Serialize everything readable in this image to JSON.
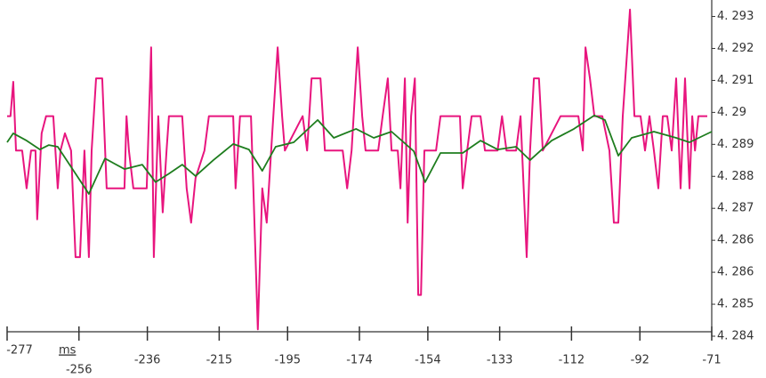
{
  "chart_data": {
    "type": "line",
    "x_label": "ms",
    "xlim": [
      -277,
      -71
    ],
    "xticks": [
      -277,
      -256,
      -236,
      -215,
      -195,
      -174,
      -154,
      -133,
      -112,
      -92,
      -71
    ],
    "ylim": [
      4.2837,
      4.29335
    ],
    "yticks": [
      {
        "value": 4.293,
        "label": "4. 293"
      },
      {
        "value": 4.29207,
        "label": "4. 292"
      },
      {
        "value": 4.29114,
        "label": "4. 291"
      },
      {
        "value": 4.29021,
        "label": "4. 29"
      },
      {
        "value": 4.28928,
        "label": "4. 289"
      },
      {
        "value": 4.28835,
        "label": "4. 288"
      },
      {
        "value": 4.28742,
        "label": "4. 287"
      },
      {
        "value": 4.28649,
        "label": "4. 286"
      },
      {
        "value": 4.28556,
        "label": "4. 286"
      },
      {
        "value": 4.28463,
        "label": "4. 285"
      },
      {
        "value": 4.2837,
        "label": "4. 284"
      }
    ],
    "series": [
      {
        "color": "#e8157e",
        "x": [
          -277.0,
          -276.0,
          -275.2,
          -274.4,
          -272.6,
          -271.3,
          -270.0,
          -268.7,
          -268.2,
          -266.9,
          -265.6,
          -263.5,
          -262.2,
          -261.4,
          -260.1,
          -258.3,
          -257.0,
          -255.7,
          -254.4,
          -253.1,
          -252.3,
          -251.0,
          -249.2,
          -247.9,
          -242.7,
          -242.1,
          -241.4,
          -240.1,
          -236.2,
          -234.9,
          -234.1,
          -232.8,
          -231.5,
          -230.4,
          -229.7,
          -225.8,
          -224.5,
          -223.2,
          -221.9,
          -219.3,
          -218.0,
          -210.9,
          -210.2,
          -208.9,
          -205.7,
          -205.0,
          -203.7,
          -202.4,
          -201.1,
          -199.8,
          -197.9,
          -196.6,
          -195.8,
          -190.6,
          -189.3,
          -188.0,
          -185.4,
          -184.1,
          -178.9,
          -177.6,
          -176.3,
          -174.5,
          -173.2,
          -172.2,
          -168.5,
          -167.2,
          -165.7,
          -164.6,
          -162.8,
          -162.0,
          -160.7,
          -159.9,
          -158.9,
          -157.8,
          -156.8,
          -156.0,
          -155.0,
          -151.6,
          -150.3,
          -144.6,
          -143.8,
          -142.5,
          -141.2,
          -138.6,
          -137.3,
          -133.6,
          -132.3,
          -131.0,
          -129.7,
          -128.2,
          -126.9,
          -125.1,
          -124.1,
          -123.0,
          -121.5,
          -120.4,
          -115.2,
          -111.3,
          -110.0,
          -108.7,
          -107.9,
          -106.6,
          -105.3,
          -103.0,
          -100.9,
          -99.6,
          -98.3,
          -97.0,
          -94.9,
          -93.6,
          -91.8,
          -90.5,
          -89.2,
          -87.9,
          -86.6,
          -85.3,
          -84.0,
          -82.7,
          -81.4,
          -80.1,
          -78.8,
          -77.5,
          -76.7,
          -75.9,
          -74.9,
          -72.3
        ],
        "values": [
          4.2901,
          4.2901,
          4.2911,
          4.2891,
          4.2891,
          4.288,
          4.2891,
          4.2891,
          4.2871,
          4.2896,
          4.2901,
          4.2901,
          4.288,
          4.2891,
          4.2896,
          4.2891,
          4.286,
          4.286,
          4.2891,
          4.286,
          4.2891,
          4.2912,
          4.2912,
          4.288,
          4.288,
          4.2901,
          4.2891,
          4.288,
          4.288,
          4.2921,
          4.286,
          4.2901,
          4.2873,
          4.2891,
          4.2901,
          4.2901,
          4.288,
          4.287,
          4.2883,
          4.2891,
          4.2901,
          4.2901,
          4.288,
          4.2901,
          4.2901,
          4.288,
          4.2839,
          4.288,
          4.287,
          4.2891,
          4.2921,
          4.2901,
          4.2891,
          4.2901,
          4.2891,
          4.2912,
          4.2912,
          4.2891,
          4.2891,
          4.288,
          4.2891,
          4.2921,
          4.2901,
          4.2891,
          4.2891,
          4.2901,
          4.2912,
          4.2891,
          4.2891,
          4.288,
          4.2912,
          4.287,
          4.2901,
          4.2912,
          4.2849,
          4.2849,
          4.2891,
          4.2891,
          4.2901,
          4.2901,
          4.288,
          4.2891,
          4.2901,
          4.2901,
          4.2891,
          4.2891,
          4.2901,
          4.2891,
          4.2891,
          4.2891,
          4.2901,
          4.286,
          4.2891,
          4.2912,
          4.2912,
          4.2891,
          4.2901,
          4.2901,
          4.2901,
          4.2891,
          4.2921,
          4.2912,
          4.2901,
          4.2901,
          4.2891,
          4.287,
          4.287,
          4.2901,
          4.2932,
          4.2901,
          4.2901,
          4.2891,
          4.2901,
          4.2891,
          4.288,
          4.2901,
          4.2901,
          4.2891,
          4.2912,
          4.288,
          4.2912,
          4.288,
          4.2901,
          4.2891,
          4.2901,
          4.2901
        ]
      },
      {
        "color": "#1e7d1e",
        "x": [
          -277.0,
          -275.2,
          -271.3,
          -267.4,
          -264.8,
          -262.2,
          -259.6,
          -257.0,
          -253.1,
          -248.4,
          -242.7,
          -237.5,
          -233.6,
          -229.7,
          -225.8,
          -221.9,
          -216.7,
          -210.9,
          -206.3,
          -202.4,
          -198.5,
          -193.2,
          -186.2,
          -181.5,
          -175.0,
          -169.8,
          -164.6,
          -158.1,
          -154.8,
          -150.3,
          -143.8,
          -138.6,
          -133.6,
          -128.2,
          -124.1,
          -117.8,
          -111.3,
          -105.3,
          -102.2,
          -98.3,
          -94.4,
          -87.9,
          -81.4,
          -77.5,
          -71.0
        ],
        "values": [
          4.28934,
          4.2896,
          4.28939,
          4.28913,
          4.28926,
          4.28921,
          4.28882,
          4.28843,
          4.28784,
          4.28887,
          4.28856,
          4.28869,
          4.28818,
          4.28843,
          4.28869,
          4.28836,
          4.28882,
          4.28929,
          4.28913,
          4.28851,
          4.28921,
          4.28934,
          4.28999,
          4.28947,
          4.28973,
          4.28947,
          4.28965,
          4.28908,
          4.28818,
          4.28903,
          4.28903,
          4.28939,
          4.28913,
          4.28921,
          4.28882,
          4.28939,
          4.28973,
          4.29012,
          4.28999,
          4.28895,
          4.28947,
          4.28965,
          4.28947,
          4.28934,
          4.28965
        ]
      }
    ]
  }
}
